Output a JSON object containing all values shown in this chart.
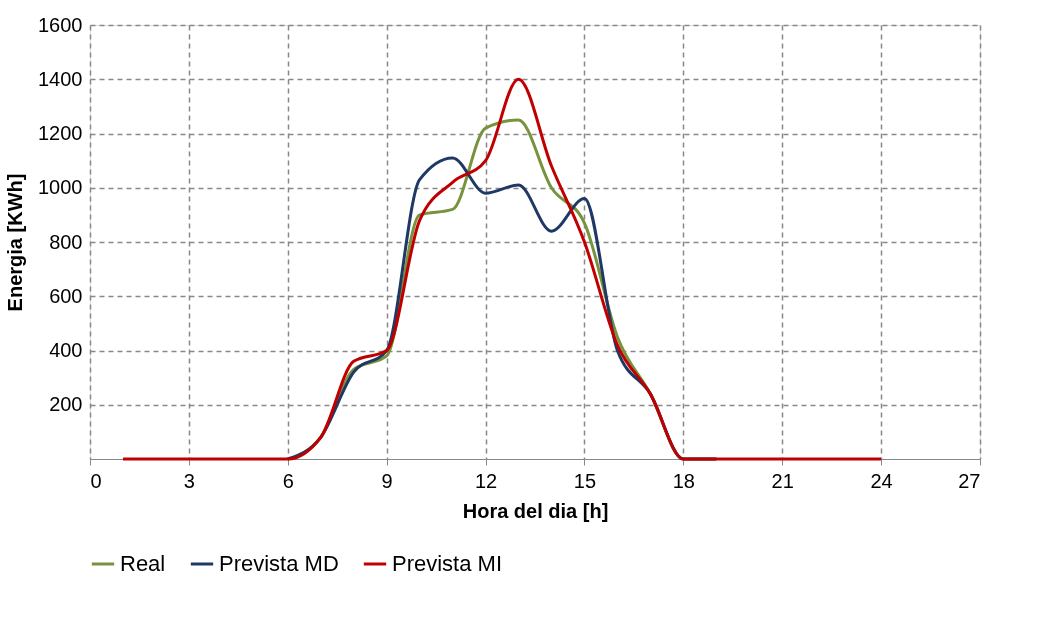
{
  "chart_data": {
    "type": "line",
    "xlabel": "Hora del dia [h]",
    "ylabel": "Energia [KWh]",
    "x": [
      1,
      2,
      3,
      4,
      5,
      6,
      7,
      8,
      9,
      10,
      11,
      12,
      13,
      14,
      15,
      16,
      17,
      18,
      19,
      20,
      21,
      22,
      23,
      24
    ],
    "series": [
      {
        "name": "Real",
        "color": "#77933c",
        "values": [
          null,
          null,
          null,
          null,
          null,
          0,
          80,
          330,
          380,
          900,
          920,
          1220,
          1250,
          1000,
          870,
          450,
          240,
          0,
          0,
          null,
          null,
          null,
          null,
          null
        ]
      },
      {
        "name": "Prevista MD",
        "color": "#1f3864",
        "values": [
          null,
          null,
          null,
          null,
          null,
          0,
          80,
          320,
          400,
          1030,
          1110,
          980,
          1010,
          840,
          960,
          400,
          240,
          0,
          0,
          null,
          null,
          null,
          null,
          null
        ]
      },
      {
        "name": "Prevista MI",
        "color": "#c00000",
        "values": [
          0,
          0,
          0,
          0,
          0,
          0,
          80,
          360,
          400,
          880,
          1020,
          1100,
          1400,
          1080,
          800,
          420,
          240,
          0,
          0,
          0,
          0,
          0,
          0,
          0
        ]
      }
    ],
    "xlim": [
      0,
      27
    ],
    "xticks": [
      0,
      3,
      6,
      9,
      12,
      15,
      18,
      21,
      24,
      27
    ],
    "ylim": [
      0,
      1600
    ],
    "yticks": [
      200,
      400,
      600,
      800,
      1000,
      1200,
      1400,
      1600
    ],
    "grid": true,
    "legend": "bottom",
    "marker": "none",
    "line_style": "solid"
  }
}
